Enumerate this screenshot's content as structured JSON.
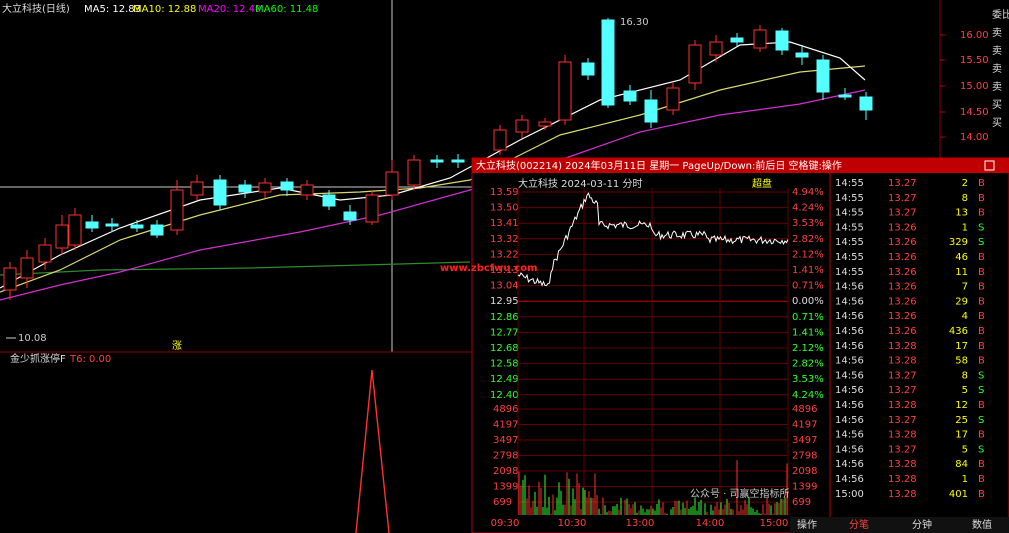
{
  "main": {
    "title": "大立科技(日线)",
    "ma": [
      "MA5: 12.83",
      "MA10: 12.88",
      "MA20: 12.40",
      "MA60: 11.48"
    ],
    "price_ticks": [
      "16.00",
      "15.50",
      "15.00",
      "14.50",
      "14.00"
    ],
    "high_label": "16.30",
    "low_label": "10.08",
    "marker": "涨",
    "side_labels": [
      "委比",
      "卖",
      "卖",
      "卖",
      "卖",
      "买",
      "买"
    ]
  },
  "indicator": {
    "title": "金少抓涨停F",
    "value": "T6: 0.00"
  },
  "popup": {
    "title": "大立科技(002214) 2024年03月11日 星期一 PageUp/Down:前后日 空格键:操作",
    "subtitle": "大立科技  2024-03-11 分时",
    "button": "超盘",
    "price_ticks": [
      "13.59",
      "13.50",
      "13.41",
      "13.32",
      "13.22",
      "13.13",
      "13.04",
      "12.95",
      "12.86",
      "12.77",
      "12.68",
      "12.58",
      "12.49",
      "12.40"
    ],
    "pct_ticks": [
      "4.94%",
      "4.24%",
      "3.53%",
      "2.82%",
      "2.12%",
      "1.41%",
      "0.71%",
      "0.00%",
      "0.71%",
      "1.41%",
      "2.12%",
      "2.82%",
      "3.53%",
      "4.24%"
    ],
    "volume_ticks": [
      "4896",
      "4197",
      "3497",
      "2798",
      "2098",
      "1399",
      "699"
    ],
    "times": [
      "09:30",
      "10:30",
      "13:00",
      "14:00",
      "15:00"
    ],
    "trades": [
      [
        "14:55",
        "13.27",
        "2",
        "B"
      ],
      [
        "14:55",
        "13.27",
        "8",
        "B"
      ],
      [
        "14:55",
        "13.27",
        "13",
        "B"
      ],
      [
        "14:55",
        "13.26",
        "1",
        "S"
      ],
      [
        "14:55",
        "13.26",
        "329",
        "S"
      ],
      [
        "14:55",
        "13.26",
        "46",
        "B"
      ],
      [
        "14:55",
        "13.26",
        "11",
        "B"
      ],
      [
        "14:56",
        "13.26",
        "7",
        "B"
      ],
      [
        "14:56",
        "13.26",
        "29",
        "B"
      ],
      [
        "14:56",
        "13.26",
        "4",
        "B"
      ],
      [
        "14:56",
        "13.26",
        "436",
        "B"
      ],
      [
        "14:56",
        "13.28",
        "17",
        "B"
      ],
      [
        "14:56",
        "13.28",
        "58",
        "B"
      ],
      [
        "14:56",
        "13.27",
        "8",
        "S"
      ],
      [
        "14:56",
        "13.27",
        "5",
        "S"
      ],
      [
        "14:56",
        "13.28",
        "12",
        "B"
      ],
      [
        "14:56",
        "13.27",
        "25",
        "S"
      ],
      [
        "14:56",
        "13.28",
        "17",
        "B"
      ],
      [
        "14:56",
        "13.27",
        "5",
        "S"
      ],
      [
        "14:56",
        "13.28",
        "84",
        "B"
      ],
      [
        "14:56",
        "13.28",
        "1",
        "B"
      ],
      [
        "15:00",
        "13.28",
        "401",
        "B"
      ]
    ],
    "tabs": [
      "操作",
      "分笔",
      "分钟",
      "数值"
    ]
  },
  "watermarks": [
    "www.zbcfwu.com",
    "公众号 · 司赢空指标所"
  ]
}
